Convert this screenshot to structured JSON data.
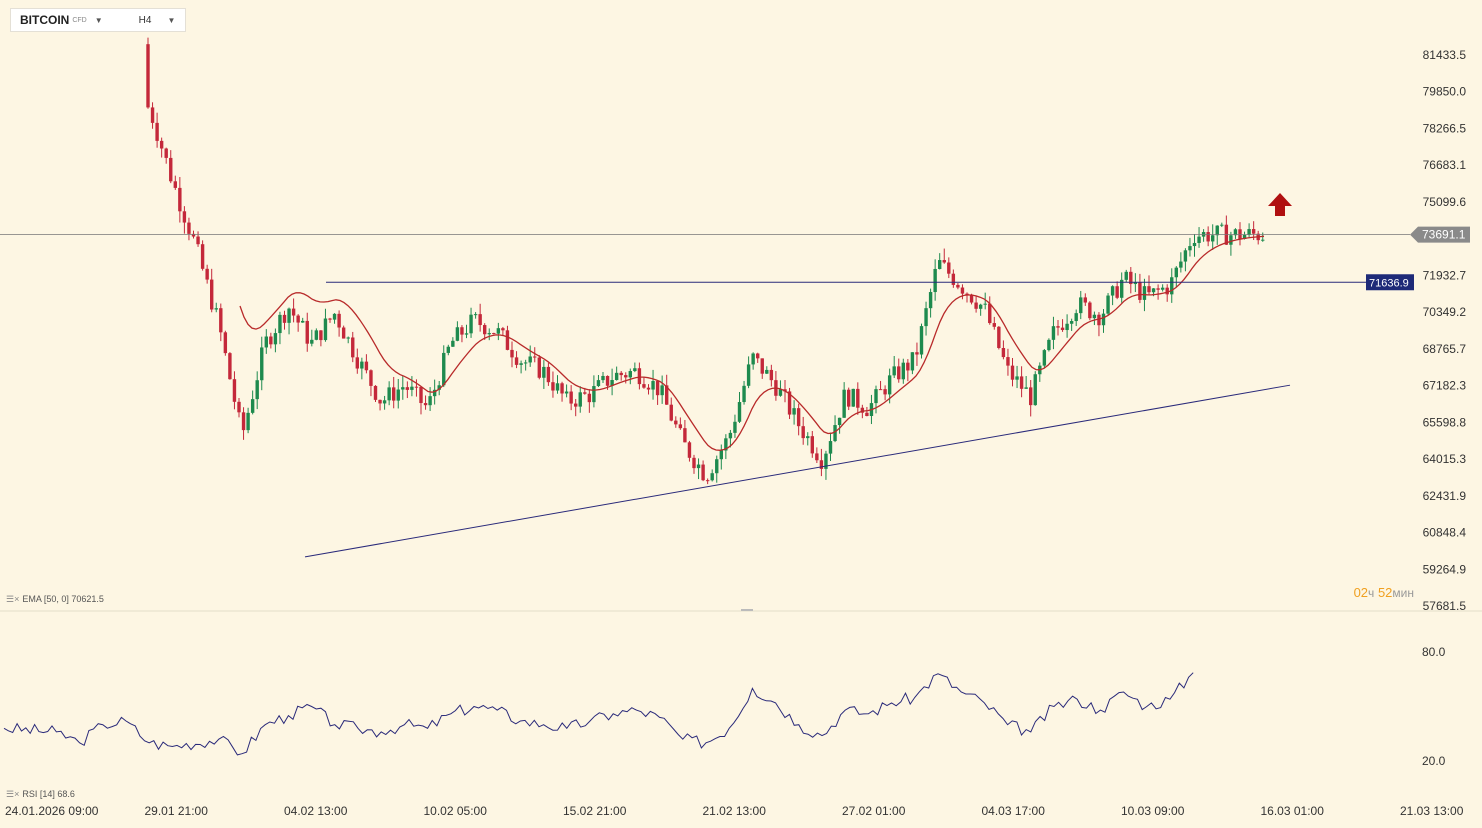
{
  "toolbar": {
    "symbol": "BITCOIN",
    "symbol_sub": "CFD",
    "timeframe": "H4"
  },
  "indicators": {
    "ema_label": "EMA [50, 0] 70621.5",
    "rsi_label": "RSI [14] 68.6"
  },
  "countdown": {
    "hours": "02",
    "hours_unit": "ч",
    "minutes": "52",
    "minutes_unit": "мин"
  },
  "colors": {
    "background": "#fdf6e3",
    "bull": "#1e8a4e",
    "bear": "#c4283a",
    "ema": "#b82a2a",
    "trendline": "#2a2a7a",
    "rsi": "#2a2a7a",
    "arrow": "#b01010"
  },
  "chart_data": [
    {
      "type": "candlestick",
      "symbol": "BITCOIN",
      "timeframe": "H4",
      "y_axis_ticks": [
        81433.5,
        79850.0,
        78266.5,
        76683.1,
        75099.6,
        71932.7,
        70349.2,
        68765.7,
        67182.3,
        65598.8,
        64015.3,
        62431.9,
        60848.4,
        59264.9,
        57681.5
      ],
      "ylim": [
        57681.5,
        81433.5
      ],
      "x_axis_ticks": [
        "24.01.2026  09:00",
        "29.01  21:00",
        "04.02  13:00",
        "10.02  05:00",
        "15.02  21:00",
        "21.02  13:00",
        "27.02  01:00",
        "04.03  17:00",
        "10.03  09:00",
        "16.03  01:00",
        "21.03  13:00"
      ],
      "last_price": 73691.1,
      "horizontal_level": 71636.9,
      "ema": {
        "name": "EMA",
        "period": 50,
        "value": 70621.5
      },
      "approx_closes": [
        {
          "x": "26.01",
          "y": 81300
        },
        {
          "x": "28.01",
          "y": 78500
        },
        {
          "x": "30.01",
          "y": 79200
        },
        {
          "x": "31.01",
          "y": 76000
        },
        {
          "x": "01.02",
          "y": 73200
        },
        {
          "x": "02.02",
          "y": 69800
        },
        {
          "x": "03.02",
          "y": 65000
        },
        {
          "x": "04.02",
          "y": 69000
        },
        {
          "x": "05.02",
          "y": 70600
        },
        {
          "x": "06.02",
          "y": 69000
        },
        {
          "x": "07.02",
          "y": 70300
        },
        {
          "x": "08.02",
          "y": 68300
        },
        {
          "x": "09.02",
          "y": 66500
        },
        {
          "x": "10.02",
          "y": 67200
        },
        {
          "x": "11.02",
          "y": 66200
        },
        {
          "x": "12.02",
          "y": 69000
        },
        {
          "x": "13.02",
          "y": 70000
        },
        {
          "x": "14.02",
          "y": 69500
        },
        {
          "x": "15.02",
          "y": 68300
        },
        {
          "x": "16.02",
          "y": 67800
        },
        {
          "x": "17.02",
          "y": 66500
        },
        {
          "x": "18.02",
          "y": 66800
        },
        {
          "x": "19.02",
          "y": 67600
        },
        {
          "x": "20.02",
          "y": 67800
        },
        {
          "x": "21.02",
          "y": 67000
        },
        {
          "x": "22.02",
          "y": 64700
        },
        {
          "x": "23.02",
          "y": 63300
        },
        {
          "x": "24.02",
          "y": 65000
        },
        {
          "x": "25.02",
          "y": 68400
        },
        {
          "x": "26.02",
          "y": 67200
        },
        {
          "x": "27.02",
          "y": 65500
        },
        {
          "x": "28.02",
          "y": 64000
        },
        {
          "x": "01.03",
          "y": 66800
        },
        {
          "x": "02.03",
          "y": 66200
        },
        {
          "x": "03.03",
          "y": 67500
        },
        {
          "x": "04.03",
          "y": 68300
        },
        {
          "x": "05.03",
          "y": 72500
        },
        {
          "x": "06.03",
          "y": 71500
        },
        {
          "x": "07.03",
          "y": 70500
        },
        {
          "x": "08.03",
          "y": 67800
        },
        {
          "x": "09.03",
          "y": 66700
        },
        {
          "x": "10.03",
          "y": 69500
        },
        {
          "x": "11.03",
          "y": 70700
        },
        {
          "x": "12.03",
          "y": 70200
        },
        {
          "x": "13.03",
          "y": 71800
        },
        {
          "x": "14.03",
          "y": 71000
        },
        {
          "x": "15.03",
          "y": 71500
        },
        {
          "x": "16.03",
          "y": 73691.1
        }
      ]
    },
    {
      "type": "line",
      "name": "RSI",
      "period": 14,
      "value": 68.6,
      "y_axis_ticks": [
        80.0,
        20.0
      ],
      "approx_values": [
        {
          "x": "24.01",
          "y": 38
        },
        {
          "x": "26.01",
          "y": 36
        },
        {
          "x": "27.01",
          "y": 30
        },
        {
          "x": "28.01",
          "y": 40
        },
        {
          "x": "29.01",
          "y": 42
        },
        {
          "x": "30.01",
          "y": 30
        },
        {
          "x": "31.01",
          "y": 28
        },
        {
          "x": "02.02",
          "y": 32
        },
        {
          "x": "03.02",
          "y": 24
        },
        {
          "x": "04.02",
          "y": 40
        },
        {
          "x": "05.02",
          "y": 45
        },
        {
          "x": "06.02",
          "y": 50
        },
        {
          "x": "07.02",
          "y": 40
        },
        {
          "x": "08.02",
          "y": 38
        },
        {
          "x": "09.02",
          "y": 36
        },
        {
          "x": "10.02",
          "y": 40
        },
        {
          "x": "11.02",
          "y": 38
        },
        {
          "x": "12.02",
          "y": 46
        },
        {
          "x": "13.02",
          "y": 50
        },
        {
          "x": "14.02",
          "y": 48
        },
        {
          "x": "15.02",
          "y": 42
        },
        {
          "x": "16.02",
          "y": 40
        },
        {
          "x": "17.02",
          "y": 38
        },
        {
          "x": "18.02",
          "y": 42
        },
        {
          "x": "19.02",
          "y": 46
        },
        {
          "x": "20.02",
          "y": 48
        },
        {
          "x": "21.02",
          "y": 44
        },
        {
          "x": "22.02",
          "y": 32
        },
        {
          "x": "23.02",
          "y": 30
        },
        {
          "x": "24.02",
          "y": 38
        },
        {
          "x": "25.02",
          "y": 60
        },
        {
          "x": "26.02",
          "y": 52
        },
        {
          "x": "27.02",
          "y": 40
        },
        {
          "x": "28.02",
          "y": 34
        },
        {
          "x": "01.03",
          "y": 48
        },
        {
          "x": "02.03",
          "y": 46
        },
        {
          "x": "03.03",
          "y": 52
        },
        {
          "x": "04.03",
          "y": 55
        },
        {
          "x": "05.03",
          "y": 68
        },
        {
          "x": "06.03",
          "y": 58
        },
        {
          "x": "07.03",
          "y": 52
        },
        {
          "x": "08.03",
          "y": 40
        },
        {
          "x": "09.03",
          "y": 36
        },
        {
          "x": "10.03",
          "y": 50
        },
        {
          "x": "11.03",
          "y": 54
        },
        {
          "x": "12.03",
          "y": 48
        },
        {
          "x": "13.03",
          "y": 58
        },
        {
          "x": "14.03",
          "y": 50
        },
        {
          "x": "15.03",
          "y": 54
        },
        {
          "x": "16.03",
          "y": 68.6
        }
      ]
    }
  ]
}
